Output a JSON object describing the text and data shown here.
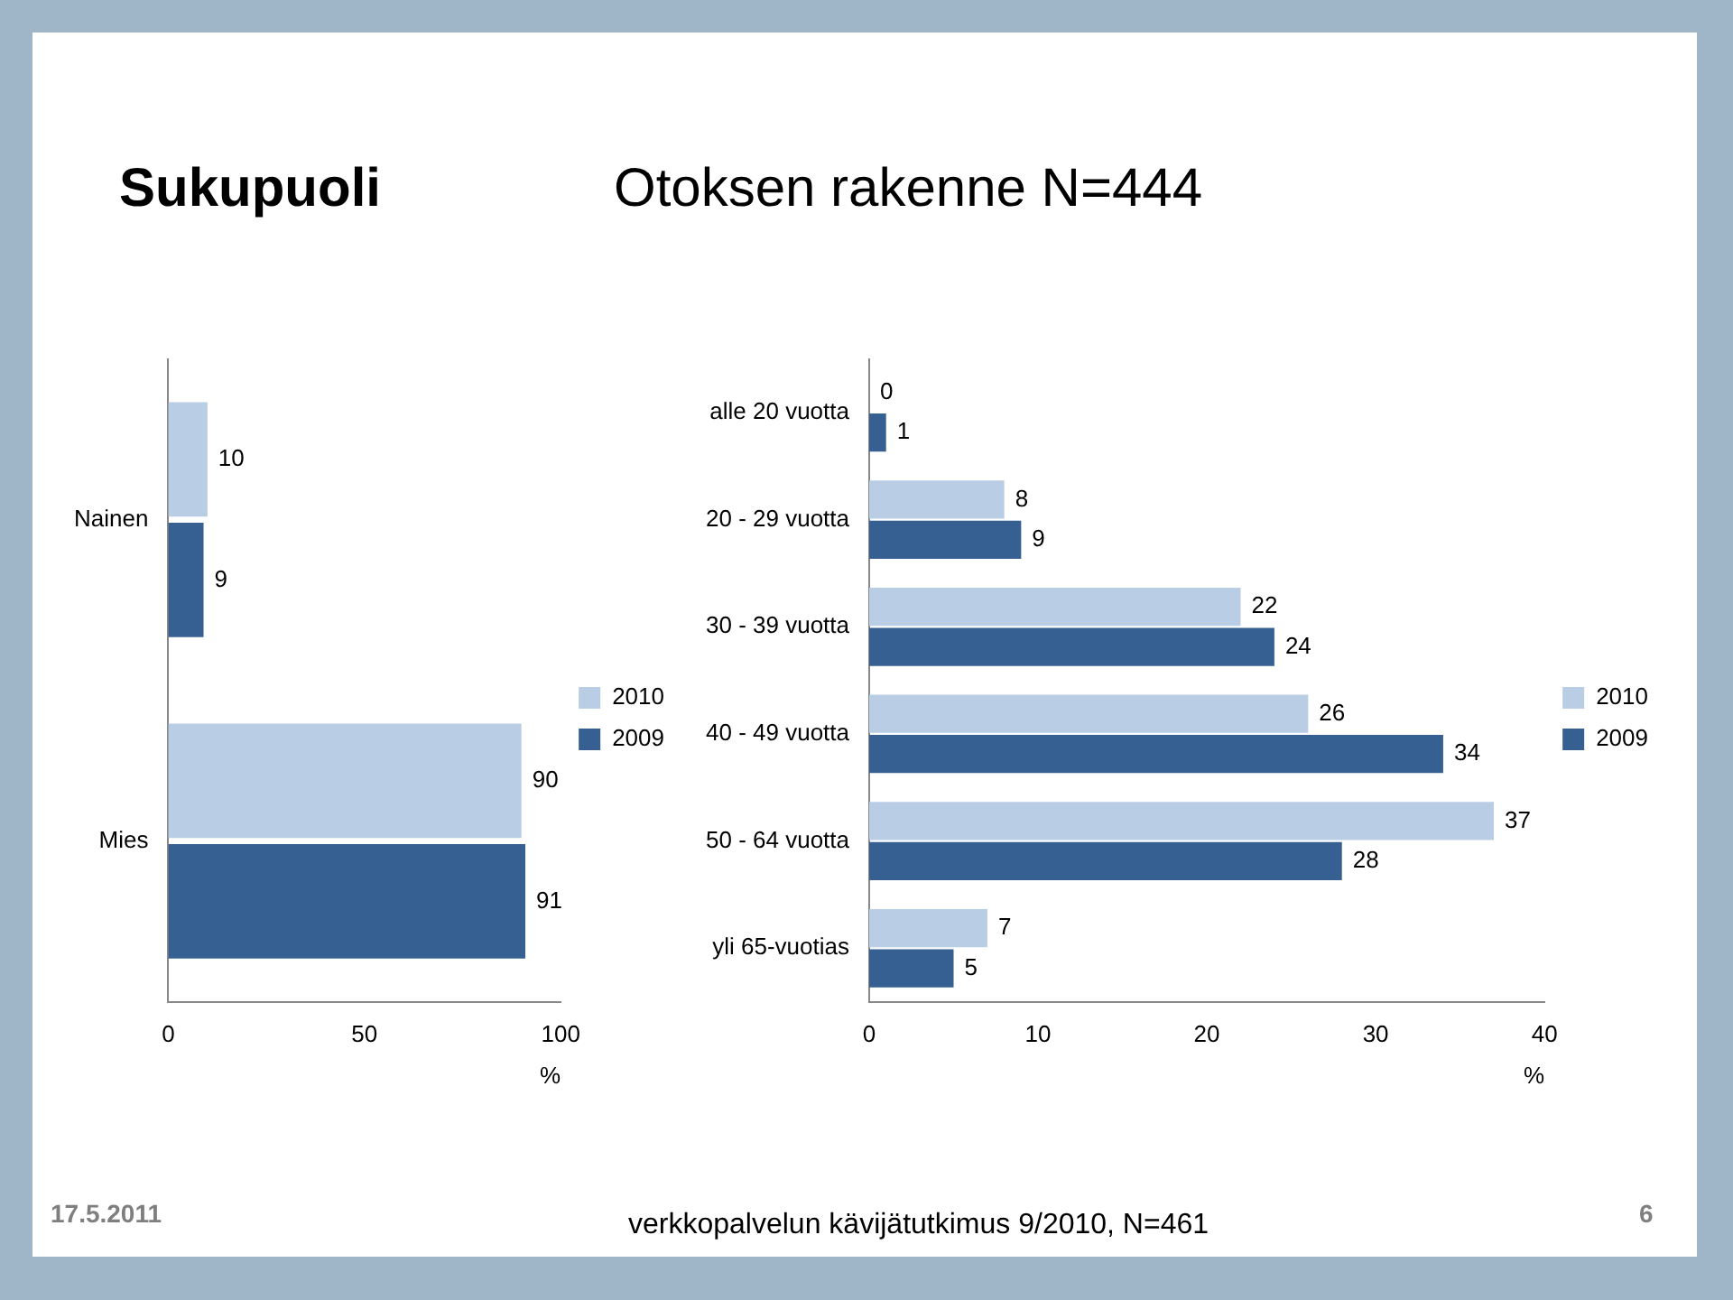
{
  "chart_data": [
    {
      "type": "bar",
      "orientation": "horizontal",
      "title": "Sukupuoli",
      "categories": [
        "Nainen",
        "Mies"
      ],
      "series": [
        {
          "name": "2010",
          "color": "#b9cde5",
          "values": [
            10,
            90
          ]
        },
        {
          "name": "2009",
          "color": "#376092",
          "values": [
            9,
            91
          ]
        }
      ],
      "xlim": [
        0,
        100
      ],
      "xticks": [
        0,
        50,
        100
      ],
      "xlabel": "%",
      "grid": false,
      "legend": "right",
      "data_labels": true,
      "annotations": [
        "17.5.2011",
        "verkkopalvelun kävijätutkimus 9/2010, N=461",
        "6"
      ]
    },
    {
      "type": "bar",
      "orientation": "horizontal",
      "title": "Otoksen rakenne N=444",
      "categories": [
        "alle 20 vuotta",
        "20 - 29 vuotta",
        "30 - 39 vuotta",
        "40 - 49 vuotta",
        "50 - 64 vuotta",
        "yli 65-vuotias"
      ],
      "series": [
        {
          "name": "2010",
          "color": "#b9cde5",
          "values": [
            0,
            8,
            22,
            26,
            37,
            7
          ]
        },
        {
          "name": "2009",
          "color": "#376092",
          "values": [
            1,
            9,
            24,
            34,
            28,
            5
          ]
        }
      ],
      "xlim": [
        0,
        40
      ],
      "xticks": [
        0,
        10,
        20,
        30,
        40
      ],
      "xlabel": "%",
      "grid": false,
      "legend": "right",
      "data_labels": true
    }
  ]
}
